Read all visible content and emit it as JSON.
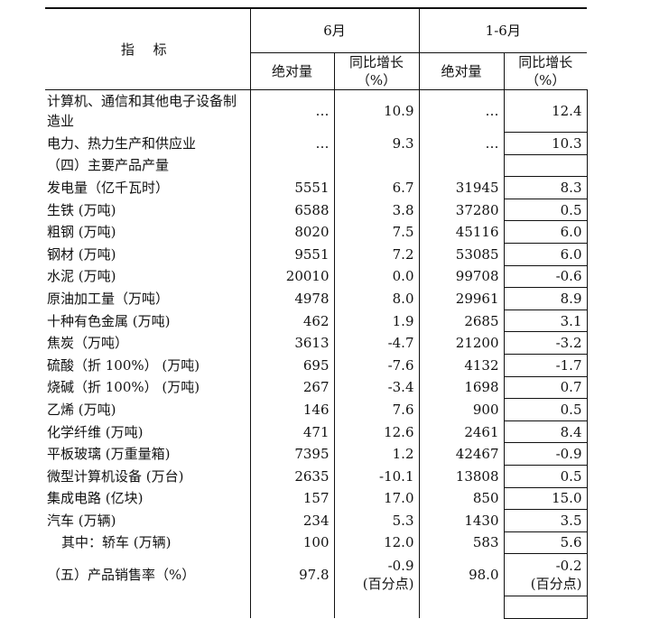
{
  "header": {
    "indicator": "指 标",
    "period1": "6月",
    "period2": "1-6月",
    "abs": "绝对量",
    "yoy": "同比增长",
    "yoy_unit": "（%）"
  },
  "rows": [
    {
      "label": "计算机、通信和其他电子设备制造业",
      "a1": "…",
      "g1": "10.9",
      "a2": "…",
      "g2": "12.4"
    },
    {
      "label": "电力、热力生产和供应业",
      "a1": "…",
      "g1": "9.3",
      "a2": "…",
      "g2": "10.3"
    },
    {
      "label": "（四）主要产品产量",
      "a1": "",
      "g1": "",
      "a2": "",
      "g2": ""
    },
    {
      "label": "发电量（亿千瓦时）",
      "a1": "5551",
      "g1": "6.7",
      "a2": "31945",
      "g2": "8.3"
    },
    {
      "label": "生铁 (万吨)",
      "a1": "6588",
      "g1": "3.8",
      "a2": "37280",
      "g2": "0.5"
    },
    {
      "label": "粗钢 (万吨)",
      "a1": "8020",
      "g1": "7.5",
      "a2": "45116",
      "g2": "6.0"
    },
    {
      "label": "钢材 (万吨)",
      "a1": "9551",
      "g1": "7.2",
      "a2": "53085",
      "g2": "6.0"
    },
    {
      "label": "水泥 (万吨)",
      "a1": "20010",
      "g1": "0.0",
      "a2": "99708",
      "g2": "-0.6"
    },
    {
      "label": "原油加工量（万吨）",
      "a1": "4978",
      "g1": "8.0",
      "a2": "29961",
      "g2": "8.9"
    },
    {
      "label": "十种有色金属 (万吨)",
      "a1": "462",
      "g1": "1.9",
      "a2": "2685",
      "g2": "3.1"
    },
    {
      "label": "焦炭（万吨）",
      "a1": "3613",
      "g1": "-4.7",
      "a2": "21200",
      "g2": "-3.2"
    },
    {
      "label": "硫酸（折 100%） (万吨)",
      "a1": "695",
      "g1": "-7.6",
      "a2": "4132",
      "g2": "-1.7"
    },
    {
      "label": "烧碱（折 100%） (万吨)",
      "a1": "267",
      "g1": "-3.4",
      "a2": "1698",
      "g2": "0.7"
    },
    {
      "label": "乙烯 (万吨)",
      "a1": "146",
      "g1": "7.6",
      "a2": "900",
      "g2": "0.5"
    },
    {
      "label": "化学纤维 (万吨)",
      "a1": "471",
      "g1": "12.6",
      "a2": "2461",
      "g2": "8.4"
    },
    {
      "label": "平板玻璃 (万重量箱)",
      "a1": "7395",
      "g1": "1.2",
      "a2": "42467",
      "g2": "-0.9"
    },
    {
      "label": "微型计算机设备 (万台)",
      "a1": "2635",
      "g1": "-10.1",
      "a2": "13808",
      "g2": "0.5"
    },
    {
      "label": "集成电路 (亿块)",
      "a1": "157",
      "g1": "17.0",
      "a2": "850",
      "g2": "15.0"
    },
    {
      "label": "汽车 (万辆)",
      "a1": "234",
      "g1": "5.3",
      "a2": "1430",
      "g2": "3.5"
    },
    {
      "label": "其中：轿车 (万辆)",
      "a1": "100",
      "g1": "12.0",
      "a2": "583",
      "g2": "5.6"
    }
  ],
  "sales_rate": {
    "label": "（五）产品销售率（%）",
    "a1": "97.8",
    "g1": "-0.9",
    "a2": "98.0",
    "g2": "-0.2",
    "note": "(百分点)"
  }
}
